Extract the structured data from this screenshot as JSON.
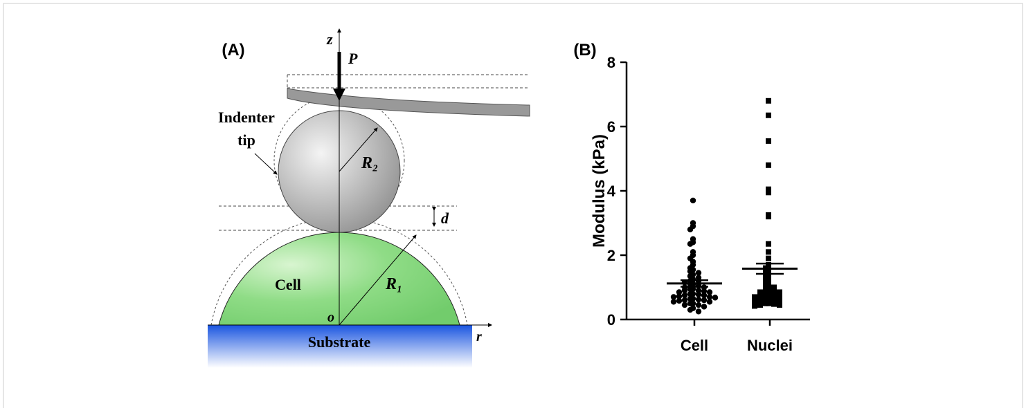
{
  "panel_a": {
    "label": "(A)",
    "z_axis": "z",
    "force": "P",
    "indenter_label": [
      "Indenter",
      "tip"
    ],
    "tip_radius": "R₂",
    "depth": "d",
    "cell": "Cell",
    "cell_radius": "R₁",
    "origin": "o",
    "r_axis": "r",
    "substrate": "Substrate"
  },
  "chart_data": {
    "type": "dot",
    "panel_label": "(B)",
    "y_label": "Modulus (kPa)",
    "categories": [
      "Cell",
      "Nuclei"
    ],
    "markers": [
      "circle",
      "square"
    ],
    "color": "#000000",
    "values": [
      [
        3.7,
        3.0,
        2.9,
        2.8,
        2.5,
        2.4,
        2.35,
        2.1,
        2.0,
        1.9,
        1.8,
        1.7,
        1.6,
        1.55,
        1.5,
        1.45,
        1.4,
        1.35,
        1.3,
        1.25,
        1.2,
        1.2,
        1.15,
        1.1,
        1.1,
        1.05,
        1.0,
        1.0,
        0.95,
        0.95,
        0.9,
        0.9,
        0.88,
        0.85,
        0.85,
        0.8,
        0.8,
        0.78,
        0.75,
        0.75,
        0.72,
        0.7,
        0.7,
        0.68,
        0.65,
        0.65,
        0.62,
        0.6,
        0.6,
        0.58,
        0.55,
        0.55,
        0.5,
        0.5,
        0.45,
        0.45,
        0.4,
        0.35,
        0.3,
        0.25
      ],
      [
        6.8,
        6.35,
        5.55,
        4.8,
        4.05,
        3.95,
        3.25,
        3.2,
        2.35,
        2.1,
        1.9,
        1.7,
        1.6,
        1.5,
        1.45,
        1.4,
        1.3,
        1.25,
        1.2,
        1.1,
        1.05,
        1.0,
        0.95,
        0.9,
        0.9,
        0.85,
        0.85,
        0.8,
        0.8,
        0.75,
        0.75,
        0.7,
        0.7,
        0.65,
        0.65,
        0.6,
        0.6,
        0.55,
        0.55,
        0.5,
        0.5,
        0.48,
        0.45,
        0.45,
        0.42
      ]
    ],
    "mean": [
      1.12,
      1.58
    ],
    "error": [
      0.1,
      0.16
    ],
    "ylim": [
      0,
      8
    ],
    "yticks": [
      0,
      2,
      4,
      6,
      8
    ]
  }
}
